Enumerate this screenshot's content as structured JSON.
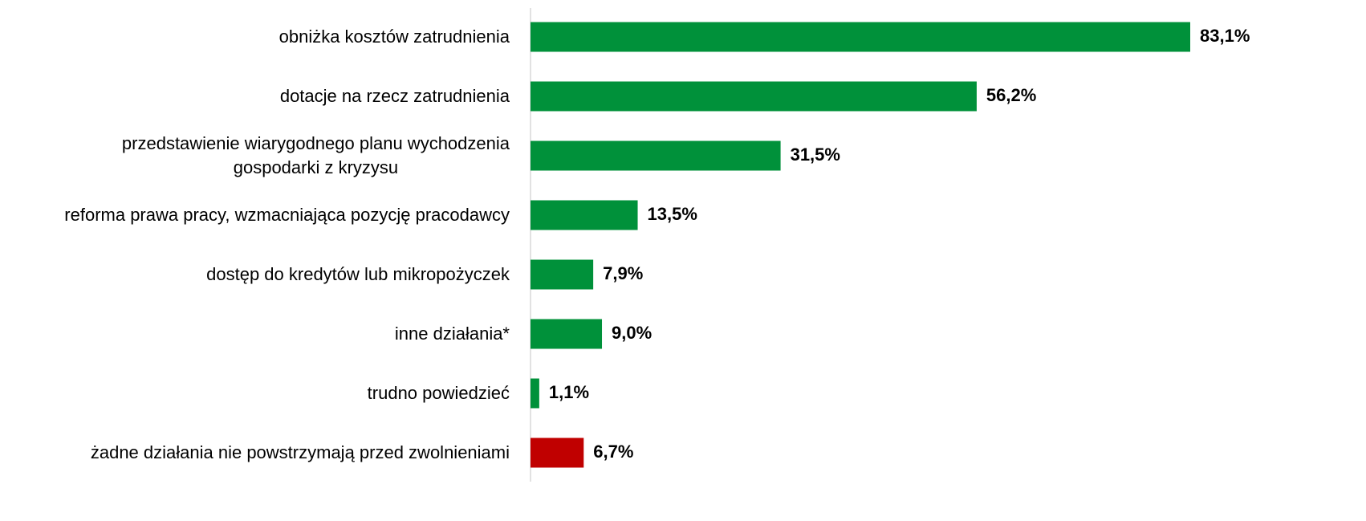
{
  "chart_data": {
    "type": "bar",
    "orientation": "horizontal",
    "categories": [
      "obniżka kosztów zatrudnienia",
      "dotacje na rzecz zatrudnienia",
      "przedstawienie wiarygodnego planu wychodzenia\ngospodarki z kryzysu",
      "reforma prawa pracy, wzmacniająca pozycję pracodawcy",
      "dostęp do kredytów lub mikropożyczek",
      "inne działania*",
      "trudno powiedzieć",
      "żadne działania nie powstrzymają przed zwolnieniami"
    ],
    "values": [
      83.1,
      56.2,
      31.5,
      13.5,
      7.9,
      9.0,
      1.1,
      6.7
    ],
    "value_labels": [
      "83,1%",
      "56,2%",
      "31,5%",
      "13,5%",
      "7,9%",
      "9,0%",
      "1,1%",
      "6,7%"
    ],
    "colors": [
      "#00913a",
      "#00913a",
      "#00913a",
      "#00913a",
      "#00913a",
      "#00913a",
      "#00913a",
      "#c00000"
    ]
  }
}
